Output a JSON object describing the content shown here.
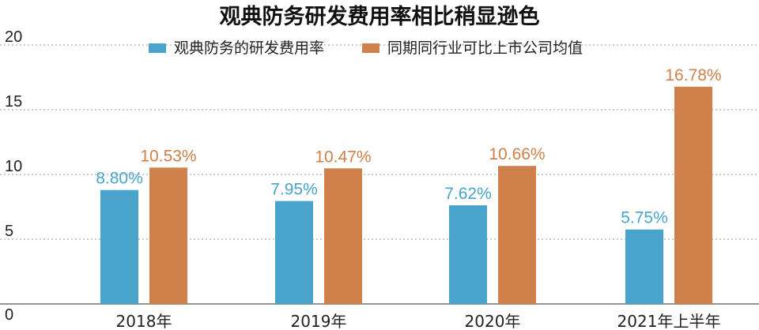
{
  "chart_data": {
    "type": "bar",
    "title": "观典防务研发费用率相比稍显逊色",
    "xlabel": "",
    "ylabel": "",
    "categories": [
      "2018年",
      "2019年",
      "2020年",
      "2021年上半年"
    ],
    "series": [
      {
        "name": "观典防务的研发费用率",
        "values": [
          8.8,
          7.95,
          7.62,
          5.75
        ],
        "labels": [
          "8.80%",
          "7.95%",
          "7.62%",
          "5.75%"
        ],
        "color": "#4aa3cb"
      },
      {
        "name": "同期同行业可比上市公司均值",
        "values": [
          10.53,
          10.47,
          10.66,
          16.78
        ],
        "labels": [
          "10.53%",
          "10.47%",
          "10.66%",
          "16.78%"
        ],
        "color": "#d0804a"
      }
    ],
    "ylim": [
      0,
      20
    ],
    "yticks": [
      0,
      5,
      10,
      15,
      20
    ],
    "grid": true,
    "legend_position": "top-center"
  }
}
